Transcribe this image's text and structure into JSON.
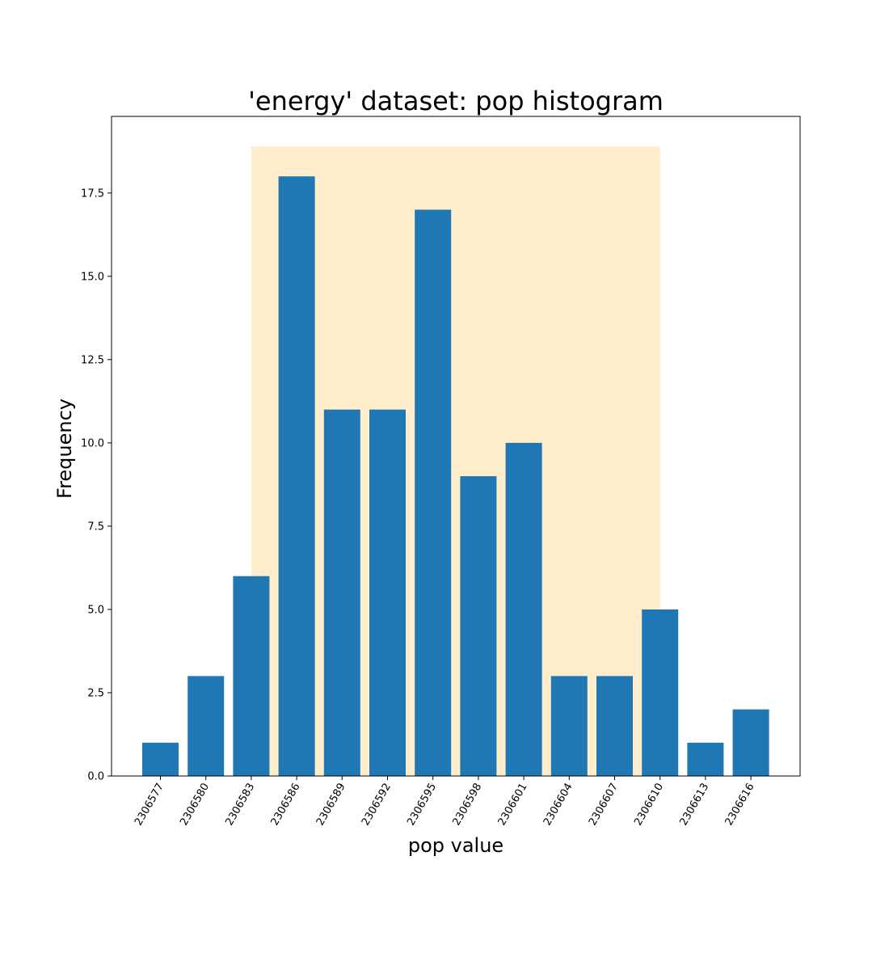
{
  "chart_data": {
    "type": "bar",
    "title": "'energy' dataset: pop histogram",
    "xlabel": "pop value",
    "ylabel": "Frequency",
    "categories": [
      "2306577",
      "2306580",
      "2306583",
      "2306586",
      "2306589",
      "2306592",
      "2306595",
      "2306598",
      "2306601",
      "2306604",
      "2306607",
      "2306610",
      "2306613",
      "2306616"
    ],
    "values": [
      1,
      3,
      6,
      18,
      11,
      11,
      17,
      9,
      10,
      3,
      3,
      5,
      1,
      2
    ],
    "ylim": [
      0,
      19.8
    ],
    "yticks": [
      "0.0",
      "2.5",
      "5.0",
      "7.5",
      "10.0",
      "12.5",
      "15.0",
      "17.5"
    ],
    "highlight_region": {
      "x_start": "2306583",
      "x_end": "2306610",
      "y_top": 18.9,
      "color": "#ffedcc"
    },
    "bar_color": "#1f77b4",
    "grid": false
  }
}
